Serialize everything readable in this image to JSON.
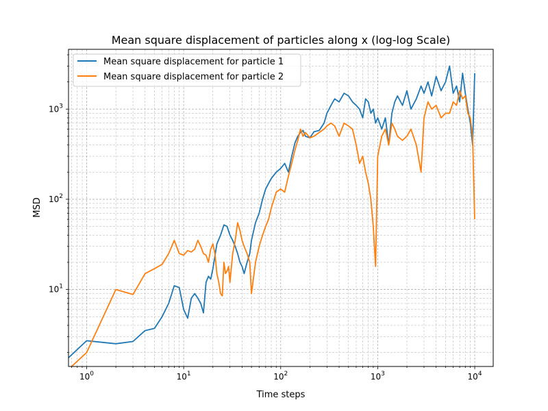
{
  "chart_data": {
    "type": "line",
    "title": "Mean square displacement of particles along x (log-log Scale)",
    "xlabel": "Time steps",
    "ylabel": "MSD",
    "xscale": "log",
    "yscale": "log",
    "xlim": [
      0.65,
      15500
    ],
    "ylim": [
      1.4,
      4600
    ],
    "x_ticks": [
      {
        "value": 1,
        "label": "10",
        "exp": "0"
      },
      {
        "value": 10,
        "label": "10",
        "exp": "1"
      },
      {
        "value": 100,
        "label": "10",
        "exp": "2"
      },
      {
        "value": 1000,
        "label": "10",
        "exp": "3"
      },
      {
        "value": 10000,
        "label": "10",
        "exp": "4"
      }
    ],
    "y_ticks": [
      {
        "value": 10,
        "label": "10",
        "exp": "1"
      },
      {
        "value": 100,
        "label": "10",
        "exp": "2"
      },
      {
        "value": 1000,
        "label": "10",
        "exp": "3"
      }
    ],
    "grid": "both (major and minor, dashed)",
    "legend_position": "upper-left",
    "series": [
      {
        "name": "Mean square displacement for particle 1",
        "color": "#1f77b4",
        "x": [
          0.65,
          1,
          2,
          3,
          4,
          5,
          6,
          7,
          8,
          9,
          10,
          11,
          12,
          13,
          14,
          15,
          16,
          17,
          18,
          19,
          20,
          22,
          24,
          26,
          28,
          30,
          32,
          34,
          36,
          38,
          40,
          42,
          45,
          48,
          50,
          55,
          60,
          65,
          70,
          75,
          80,
          90,
          100,
          110,
          120,
          130,
          140,
          150,
          160,
          170,
          180,
          200,
          220,
          250,
          280,
          300,
          330,
          360,
          400,
          450,
          500,
          550,
          600,
          650,
          700,
          750,
          800,
          850,
          900,
          950,
          1000,
          1100,
          1200,
          1300,
          1400,
          1500,
          1600,
          1800,
          2000,
          2200,
          2500,
          2800,
          3000,
          3300,
          3600,
          4000,
          4500,
          5000,
          5500,
          6000,
          6500,
          7000,
          7500,
          8000,
          8500,
          9000,
          9500,
          10000
        ],
        "y": [
          1.75,
          2.7,
          2.5,
          2.65,
          3.5,
          3.7,
          5,
          7,
          11,
          10.5,
          6,
          4.8,
          8,
          9,
          8,
          7,
          5.5,
          12,
          14,
          13,
          17,
          32,
          40,
          52,
          50,
          40,
          35,
          30,
          25,
          20,
          18,
          15,
          20,
          25,
          35,
          55,
          70,
          100,
          130,
          150,
          170,
          200,
          220,
          250,
          200,
          300,
          420,
          500,
          550,
          580,
          500,
          480,
          560,
          580,
          700,
          900,
          1100,
          1300,
          1200,
          1500,
          1400,
          1200,
          1100,
          1000,
          800,
          1300,
          1200,
          900,
          1000,
          700,
          800,
          600,
          800,
          400,
          900,
          1200,
          1400,
          1100,
          1600,
          1000,
          1300,
          1800,
          1500,
          2000,
          1400,
          2300,
          1600,
          2000,
          3000,
          1500,
          1800,
          1200,
          2500,
          1500,
          1000,
          700,
          400,
          2500
        ]
      },
      {
        "name": "Mean square displacement for particle 2",
        "color": "#ff7f0e",
        "x": [
          0.65,
          1,
          2,
          3,
          4,
          5,
          6,
          7,
          8,
          9,
          10,
          11,
          12,
          13,
          14,
          15,
          16,
          17,
          18,
          19,
          20,
          21,
          22,
          23,
          24,
          25,
          26,
          27,
          28,
          29,
          30,
          32,
          34,
          36,
          38,
          40,
          42,
          45,
          48,
          50,
          55,
          60,
          65,
          70,
          75,
          80,
          90,
          100,
          110,
          120,
          130,
          140,
          150,
          160,
          170,
          180,
          200,
          220,
          250,
          280,
          300,
          330,
          360,
          400,
          450,
          500,
          550,
          600,
          650,
          700,
          750,
          800,
          850,
          900,
          950,
          1000,
          1100,
          1200,
          1300,
          1400,
          1500,
          1600,
          1800,
          2000,
          2200,
          2500,
          2800,
          3000,
          3300,
          3600,
          4000,
          4500,
          5000,
          5500,
          6000,
          6500,
          7000,
          7500,
          8000,
          8500,
          9000,
          9500,
          10000
        ],
        "y": [
          1.3,
          2,
          10,
          8.8,
          15,
          17,
          19,
          25,
          35,
          25,
          24,
          27,
          26,
          28,
          35,
          30,
          25,
          24,
          20,
          28,
          32,
          25,
          15,
          12,
          9,
          8.5,
          20,
          15,
          16,
          18,
          12,
          25,
          35,
          55,
          45,
          35,
          30,
          25,
          20,
          9,
          20,
          30,
          40,
          50,
          60,
          80,
          120,
          130,
          120,
          180,
          250,
          350,
          450,
          600,
          500,
          550,
          480,
          500,
          550,
          600,
          650,
          700,
          650,
          500,
          700,
          650,
          600,
          400,
          250,
          300,
          200,
          150,
          100,
          50,
          18,
          300,
          500,
          600,
          400,
          700,
          600,
          500,
          450,
          500,
          600,
          400,
          200,
          800,
          1200,
          1000,
          1100,
          800,
          900,
          900,
          1200,
          1100,
          1600,
          1300,
          1400,
          900,
          800,
          500,
          60
        ]
      }
    ]
  }
}
